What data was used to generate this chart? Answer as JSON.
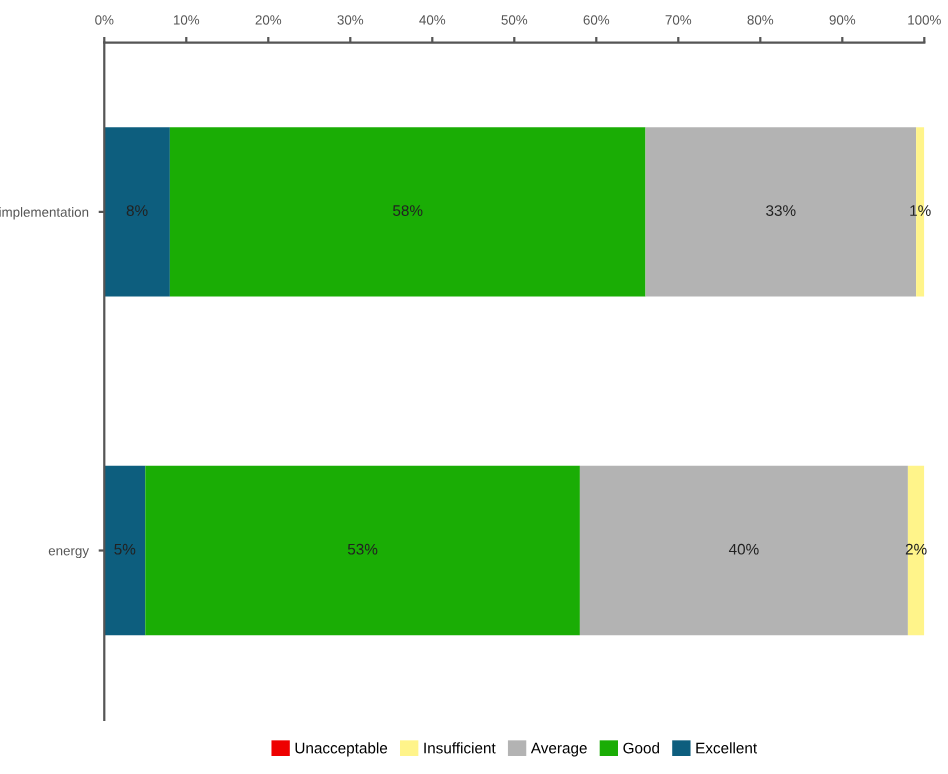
{
  "chart_data": {
    "type": "bar",
    "orientation": "horizontal",
    "stacked": true,
    "categories": [
      "implementation",
      "energy"
    ],
    "series": [
      {
        "name": "Excellent",
        "color": "#0d5e7e",
        "values": [
          8,
          5
        ],
        "value_labels": [
          "8%",
          "5%"
        ]
      },
      {
        "name": "Good",
        "color": "#1aad05",
        "values": [
          58,
          53
        ],
        "value_labels": [
          "58%",
          "53%"
        ]
      },
      {
        "name": "Average",
        "color": "#b3b3b3",
        "values": [
          33,
          40
        ],
        "value_labels": [
          "33%",
          "40%"
        ]
      },
      {
        "name": "Insufficient",
        "color": "#fff48a",
        "values": [
          1,
          2
        ],
        "value_labels": [
          "1%",
          "2%"
        ]
      },
      {
        "name": "Unacceptable",
        "color": "#ee0000",
        "values": [
          0,
          0
        ],
        "value_labels": [
          null,
          null
        ]
      }
    ],
    "xlim": [
      0,
      100
    ],
    "xticks": [
      {
        "value": 0,
        "label": "0%"
      },
      {
        "value": 10,
        "label": "10%"
      },
      {
        "value": 20,
        "label": "20%"
      },
      {
        "value": 30,
        "label": "30%"
      },
      {
        "value": 40,
        "label": "40%"
      },
      {
        "value": 50,
        "label": "50%"
      },
      {
        "value": 60,
        "label": "60%"
      },
      {
        "value": 70,
        "label": "70%"
      },
      {
        "value": 80,
        "label": "80%"
      },
      {
        "value": 90,
        "label": "90%"
      },
      {
        "value": 100,
        "label": "100%"
      }
    ],
    "grid": false,
    "legend": "bottom"
  }
}
